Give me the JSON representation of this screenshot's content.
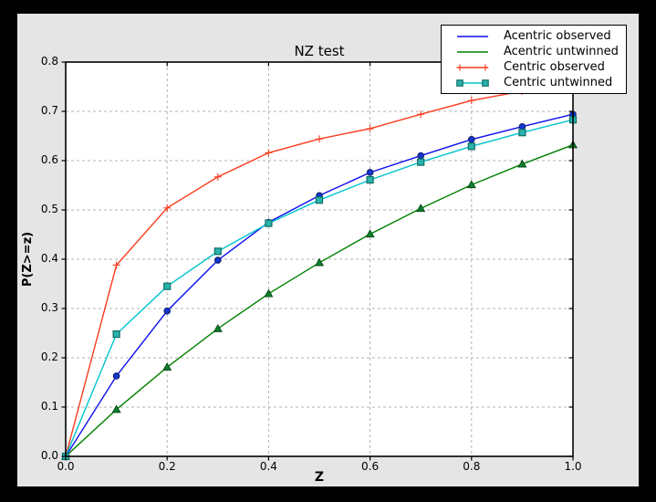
{
  "figure": {
    "title": "NZ test",
    "xlabel": "Z",
    "ylabel": "P(Z>=z)"
  },
  "colors": {
    "page_frame": "#000000",
    "figure_bg": "#e5e5e5",
    "plot_bg": "#ffffff",
    "grid": "#b3b3b3",
    "axis": "#000000",
    "legend_bg": "#ffffff",
    "legend_border": "#000000"
  },
  "chart_data": {
    "type": "line",
    "title": "NZ test",
    "xlabel": "Z",
    "ylabel": "P(Z>=z)",
    "xlim": [
      0.0,
      1.0
    ],
    "ylim": [
      0.0,
      0.8
    ],
    "xticks": [
      0.0,
      0.2,
      0.4,
      0.6,
      0.8,
      1.0
    ],
    "xtick_labels": [
      "0.0",
      "0.2",
      "0.4",
      "0.6",
      "0.8",
      "1.0"
    ],
    "yticks": [
      0.0,
      0.1,
      0.2,
      0.3,
      0.4,
      0.5,
      0.6,
      0.7,
      0.8
    ],
    "ytick_labels": [
      "0.0",
      "0.1",
      "0.2",
      "0.3",
      "0.4",
      "0.5",
      "0.6",
      "0.7",
      "0.8"
    ],
    "grid": true,
    "grid_style": "dashed",
    "legend_position": "upper right",
    "x": [
      0.0,
      0.1,
      0.2,
      0.3,
      0.4,
      0.5,
      0.6,
      0.7,
      0.8,
      0.9,
      1.0
    ],
    "series": [
      {
        "name": "Acentric observed",
        "color": "#0c0cee",
        "marker": "circle",
        "marker_fill": "#1436cc",
        "marker_edge": "#0a1b66",
        "legend_marker": false,
        "values": [
          0.0,
          0.163,
          0.295,
          0.398,
          0.475,
          0.529,
          0.576,
          0.61,
          0.643,
          0.669,
          0.694
        ]
      },
      {
        "name": "Acentric untwinned",
        "color": "#008000",
        "marker": "triangle",
        "marker_fill": "#0e7f2e",
        "marker_edge": "#044d16",
        "legend_marker": false,
        "values": [
          0.0,
          0.095,
          0.181,
          0.259,
          0.33,
          0.393,
          0.451,
          0.503,
          0.551,
          0.593,
          0.632
        ]
      },
      {
        "name": "Centric observed",
        "color": "#fa3b1d",
        "marker": "plus",
        "marker_fill": "#fa3b1d",
        "marker_edge": "#fa3b1d",
        "legend_marker": true,
        "values": [
          0.0,
          0.388,
          0.504,
          0.567,
          0.616,
          0.644,
          0.665,
          0.694,
          0.722,
          0.741,
          0.756
        ]
      },
      {
        "name": "Centric untwinned",
        "color": "#00c4cc",
        "marker": "square",
        "marker_fill": "#29b3ab",
        "marker_edge": "#0f6e67",
        "legend_marker": true,
        "values": [
          0.0,
          0.248,
          0.345,
          0.416,
          0.473,
          0.52,
          0.561,
          0.597,
          0.629,
          0.657,
          0.683
        ]
      }
    ]
  }
}
